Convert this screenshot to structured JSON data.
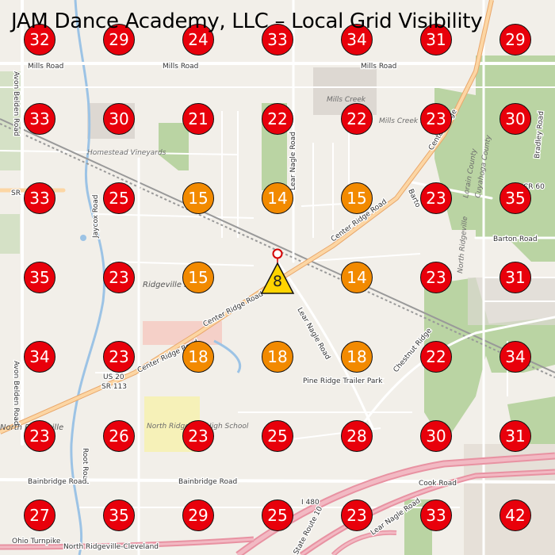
{
  "title": "JAM Dance Academy, LLC – Local Grid Visibility",
  "colors": {
    "high": "#e8000b",
    "mid": "#f28a00",
    "top": "#ffd400"
  },
  "grid": [
    [
      "32",
      "29",
      "24",
      "33",
      "34",
      "31",
      "29"
    ],
    [
      "33",
      "30",
      "21",
      "22",
      "22",
      "23",
      "30"
    ],
    [
      "33",
      "25",
      "15",
      "14",
      "15",
      "23",
      "35"
    ],
    [
      "35",
      "23",
      "15",
      "",
      "14",
      "23",
      "31"
    ],
    [
      "34",
      "23",
      "18",
      "18",
      "18",
      "22",
      "34"
    ],
    [
      "23",
      "26",
      "23",
      "25",
      "28",
      "30",
      "31"
    ],
    [
      "27",
      "35",
      "29",
      "25",
      "23",
      "33",
      "42"
    ]
  ],
  "center": {
    "rank": "8",
    "icon": "business-pin-icon"
  },
  "labels": {
    "mills_road_left": "Mills Road",
    "mills_road_right": "Mills Road",
    "mills_creek": "Mills Creek",
    "mills_creek_east": "Mills Creek East",
    "homestead": "Homestead Vineyards",
    "ridgeville_park": "Ridgeville Park",
    "center_ridge_1": "Center Ridge Road",
    "center_ridge_2": "Center Ridge Road",
    "center_ridge_3": "Center Ridge Road",
    "lear_nagle": "Lear Nagle Road",
    "lear_nagle_n": "Lear Nagle Road",
    "pine_ridge": "Pine Ridge Trailer Park",
    "avon_belden_1": "Avon Belden Road",
    "avon_belden_2": "Avon Belden Road",
    "jaycox": "Jaycox Road",
    "sr_left": "SR",
    "us20": "US 20",
    "sr113": "SR 113",
    "north_ridgeville": "North Ridgeville",
    "nrhs": "North Ridgeville High School",
    "root_road": "Root Road",
    "bainbridge_1": "Bainbridge Road",
    "bainbridge_2": "Bainbridge Road",
    "ohio_turnpike": "Ohio Turnpike",
    "nr_cleveland": "North Ridgeville-Cleveland",
    "i480": "I 480",
    "state_route_10": "State Route 10",
    "chestnut": "Chestnut Ridge",
    "cook_road": "Cook Road",
    "barton_road": "Barton Road",
    "cr60": "CR 60",
    "bradley": "Bradley Road",
    "lorain_county": "Lorain County",
    "cuyahoga_county": "Cuyahoga County",
    "north_ridgeville_side": "North Ridgeville",
    "barton_short": "Barto",
    "center_ridge_right": "Center Ridge",
    "lear_nagle_south": "Lear Nagle Road"
  }
}
